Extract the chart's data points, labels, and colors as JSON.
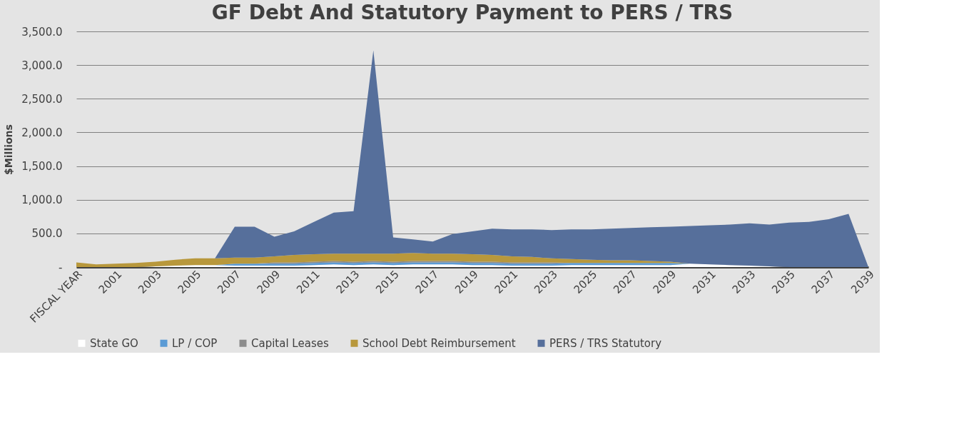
{
  "chart_data": {
    "type": "area",
    "title": "GF Debt And Statutory Payment  to PERS / TRS",
    "ylabel": "$Millions",
    "stacked": true,
    "categories": [
      "FISCAL YEAR",
      null,
      "2001",
      null,
      "2003",
      null,
      "2005",
      null,
      "2007",
      null,
      "2009",
      null,
      "2011",
      null,
      "2013",
      null,
      "2015",
      null,
      "2017",
      null,
      "2019",
      null,
      "2021",
      null,
      "2023",
      null,
      "2025",
      null,
      "2027",
      null,
      "2029",
      null,
      "2031",
      null,
      "2033",
      null,
      "2035",
      null,
      "2037",
      null,
      "2039"
    ],
    "series": [
      {
        "name": "State GO",
        "color": "#ffffff",
        "values": [
          0,
          0,
          0,
          0,
          10,
          20,
          30,
          30,
          20,
          20,
          20,
          20,
          30,
          40,
          30,
          40,
          30,
          40,
          40,
          40,
          30,
          30,
          20,
          20,
          20,
          30,
          30,
          30,
          30,
          30,
          30,
          50,
          40,
          30,
          20,
          10,
          0,
          0,
          0,
          0,
          0
        ]
      },
      {
        "name": "LP / COP",
        "color": "#5b9bd5",
        "values": [
          0,
          0,
          0,
          0,
          0,
          0,
          0,
          0,
          30,
          30,
          30,
          30,
          30,
          30,
          30,
          30,
          30,
          30,
          30,
          30,
          30,
          30,
          30,
          30,
          30,
          30,
          30,
          30,
          30,
          30,
          30,
          0,
          0,
          0,
          0,
          0,
          0,
          0,
          0,
          0,
          0
        ]
      },
      {
        "name": "Capital Leases",
        "color": "#8c8c8c",
        "values": [
          0,
          0,
          0,
          0,
          0,
          0,
          0,
          0,
          0,
          0,
          20,
          20,
          20,
          20,
          20,
          20,
          20,
          20,
          20,
          20,
          20,
          20,
          20,
          20,
          20,
          0,
          0,
          0,
          0,
          0,
          0,
          0,
          0,
          0,
          0,
          0,
          0,
          0,
          0,
          0,
          0
        ]
      },
      {
        "name": "School Debt Reimbursement",
        "color": "#b8983c",
        "values": [
          70,
          40,
          50,
          60,
          70,
          90,
          100,
          100,
          90,
          90,
          90,
          110,
          110,
          110,
          120,
          110,
          120,
          120,
          110,
          110,
          110,
          100,
          90,
          80,
          60,
          60,
          50,
          40,
          40,
          30,
          20,
          0,
          0,
          0,
          0,
          0,
          0,
          0,
          0,
          0,
          0
        ]
      },
      {
        "name": "PERS / TRS Statutory",
        "color": "#566f9b",
        "values": [
          0,
          0,
          0,
          0,
          0,
          0,
          0,
          0,
          460,
          460,
          290,
          350,
          480,
          610,
          630,
          3020,
          240,
          200,
          180,
          290,
          340,
          390,
          400,
          410,
          420,
          440,
          450,
          470,
          480,
          500,
          520,
          560,
          580,
          600,
          630,
          620,
          660,
          670,
          710,
          790,
          0
        ]
      }
    ],
    "ylim": [
      0,
      3500
    ],
    "yticks": [
      {
        "value": 0,
        "label": "-"
      },
      {
        "value": 500,
        "label": "500.0"
      },
      {
        "value": 1000,
        "label": "1,000.0"
      },
      {
        "value": 1500,
        "label": "1,500.0"
      },
      {
        "value": 2000,
        "label": "2,000.0"
      },
      {
        "value": 2500,
        "label": "2,500.0"
      },
      {
        "value": 3000,
        "label": "3,000.0"
      },
      {
        "value": 3500,
        "label": "3,500.0"
      }
    ],
    "grid": "y",
    "legend": "bottom"
  }
}
